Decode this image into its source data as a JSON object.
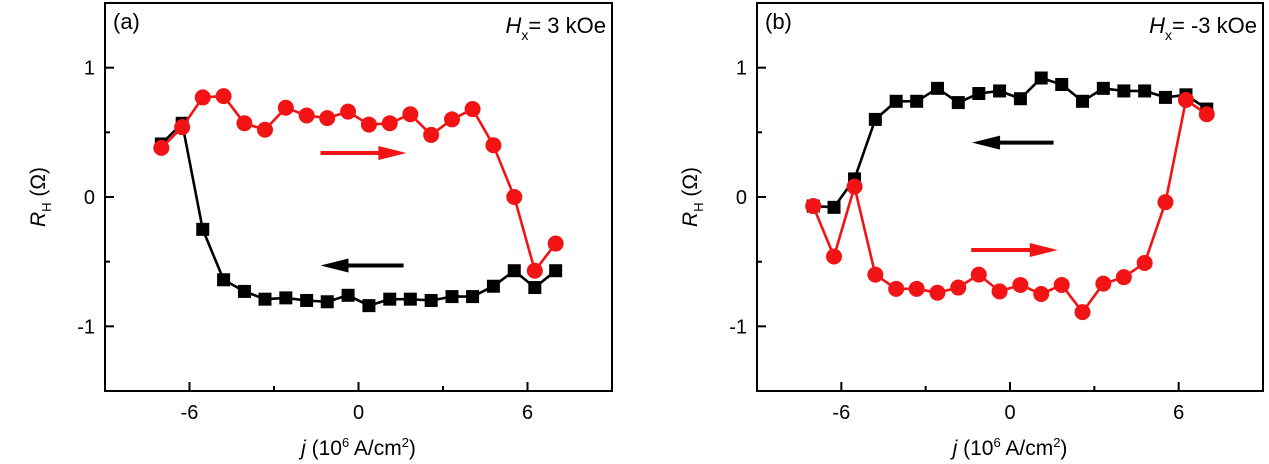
{
  "colors": {
    "black_series": "#000000",
    "red_series": "#f21414",
    "axes": "#000000"
  },
  "chart_data": [
    {
      "type": "line",
      "panel_label": "(a)",
      "annotation": {
        "symbol": "H",
        "subscript": "x",
        "text": "= 3 kOe"
      },
      "xlabel": {
        "symbol": "j",
        "prefix": " (10",
        "sup1": "6",
        "mid": " A/cm",
        "sup2": "2",
        "suffix": ")"
      },
      "ylabel": {
        "symbol": "R",
        "subscript": "H",
        "unit": " (Ω)"
      },
      "xlim": [
        -9,
        9
      ],
      "ylim": [
        -1.5,
        1.5
      ],
      "xticks": [
        -6,
        0,
        6
      ],
      "xticklabels": [
        "-6",
        "0",
        "6"
      ],
      "xminor": [
        -3,
        3
      ],
      "yticks": [
        -1,
        0,
        1
      ],
      "yticklabels": [
        "-1",
        "0",
        "1"
      ],
      "yminor": [
        -0.5,
        0.5
      ],
      "grid": false,
      "x": [
        -7.0,
        -6.26,
        -5.53,
        -4.79,
        -4.05,
        -3.32,
        -2.58,
        -1.84,
        -1.11,
        -0.37,
        0.37,
        1.11,
        1.84,
        2.58,
        3.32,
        4.05,
        4.79,
        5.53,
        6.26,
        7.0
      ],
      "series": [
        {
          "marker": "square",
          "color": "#000000",
          "values": [
            0.41,
            0.57,
            -0.25,
            -0.64,
            -0.73,
            -0.79,
            -0.78,
            -0.8,
            -0.81,
            -0.76,
            -0.84,
            -0.79,
            -0.79,
            -0.8,
            -0.77,
            -0.77,
            -0.69,
            -0.57,
            -0.7,
            -0.57
          ]
        },
        {
          "marker": "circle",
          "color": "#f21414",
          "values": [
            0.38,
            0.54,
            0.77,
            0.78,
            0.57,
            0.52,
            0.69,
            0.63,
            0.61,
            0.66,
            0.56,
            0.57,
            0.64,
            0.48,
            0.6,
            0.68,
            0.4,
            0.0,
            -0.57,
            -0.36
          ]
        }
      ],
      "arrows": [
        {
          "color": "#f21414",
          "direction": "right",
          "from": [
            -1.35,
            0.34
          ],
          "to": [
            1.7,
            0.34
          ]
        },
        {
          "color": "#000000",
          "direction": "left",
          "from": [
            1.6,
            -0.53
          ],
          "to": [
            -1.35,
            -0.53
          ]
        }
      ]
    },
    {
      "type": "line",
      "panel_label": "(b)",
      "annotation": {
        "symbol": "H",
        "subscript": "x",
        "text": "= -3 kOe"
      },
      "xlabel": {
        "symbol": "j",
        "prefix": " (10",
        "sup1": "6",
        "mid": " A/cm",
        "sup2": "2",
        "suffix": ")"
      },
      "ylabel": {
        "symbol": "R",
        "subscript": "H",
        "unit": " (Ω)"
      },
      "xlim": [
        -9,
        9
      ],
      "ylim": [
        -1.5,
        1.5
      ],
      "xticks": [
        -6,
        0,
        6
      ],
      "xticklabels": [
        "-6",
        "0",
        "6"
      ],
      "xminor": [
        -3,
        3
      ],
      "yticks": [
        -1,
        0,
        1
      ],
      "yticklabels": [
        "-1",
        "0",
        "1"
      ],
      "yminor": [
        -0.5,
        0.5
      ],
      "grid": false,
      "x": [
        -7.0,
        -6.26,
        -5.53,
        -4.79,
        -4.05,
        -3.32,
        -2.58,
        -1.84,
        -1.11,
        -0.37,
        0.37,
        1.11,
        1.84,
        2.58,
        3.32,
        4.05,
        4.79,
        5.53,
        6.26,
        7.0
      ],
      "series": [
        {
          "marker": "square",
          "color": "#000000",
          "values": [
            -0.07,
            -0.08,
            0.14,
            0.6,
            0.74,
            0.74,
            0.84,
            0.73,
            0.8,
            0.82,
            0.76,
            0.92,
            0.87,
            0.74,
            0.84,
            0.82,
            0.82,
            0.77,
            0.79,
            0.68
          ]
        },
        {
          "marker": "circle",
          "color": "#f21414",
          "values": [
            -0.07,
            -0.46,
            0.08,
            -0.6,
            -0.71,
            -0.71,
            -0.74,
            -0.7,
            -0.6,
            -0.73,
            -0.68,
            -0.75,
            -0.68,
            -0.89,
            -0.67,
            -0.62,
            -0.51,
            -0.04,
            0.75,
            0.64
          ]
        }
      ],
      "arrows": [
        {
          "color": "#000000",
          "direction": "left",
          "from": [
            1.55,
            0.42
          ],
          "to": [
            -1.35,
            0.42
          ]
        },
        {
          "color": "#f21414",
          "direction": "right",
          "from": [
            -1.38,
            -0.41
          ],
          "to": [
            1.7,
            -0.41
          ]
        }
      ]
    }
  ]
}
